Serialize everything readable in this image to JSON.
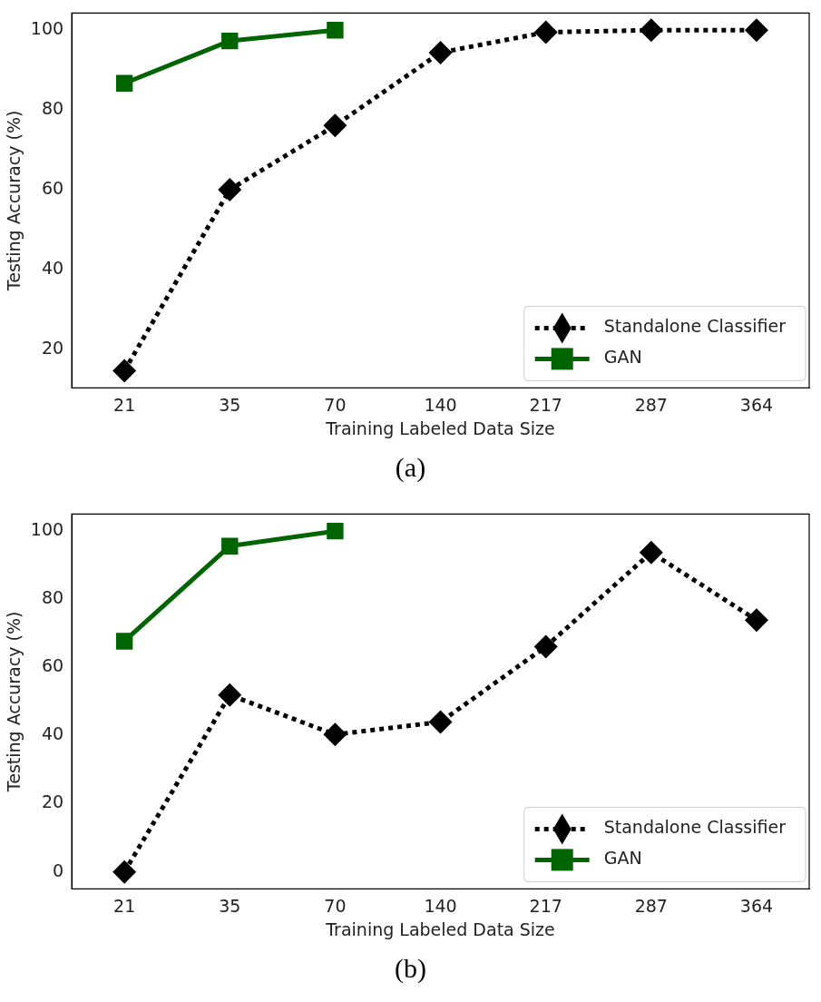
{
  "chart_data": [
    {
      "type": "line",
      "xlabel": "Training Labeled Data Size",
      "ylabel": "Testing Accuracy (%)",
      "categories": [
        "21",
        "35",
        "70",
        "140",
        "217",
        "287",
        "364"
      ],
      "series": [
        {
          "name": "Standalone Classifier",
          "color": "#000000",
          "marker": "diamond",
          "line_style": "dotted",
          "values": [
            14.6,
            60,
            76.1,
            94.4,
            99.5,
            100,
            100
          ]
        },
        {
          "name": "GAN",
          "color": "#006400",
          "marker": "square",
          "line_style": "solid",
          "values": [
            86.7,
            97.3,
            100,
            null,
            null,
            null,
            null
          ]
        }
      ],
      "ylim": [
        10.3,
        104.3
      ],
      "yticks": [
        20,
        40,
        60,
        80,
        100
      ],
      "grid": false,
      "legend": "bottom right",
      "annotations": [
        "(a)"
      ]
    },
    {
      "type": "line",
      "xlabel": "Training Labeled Data Size",
      "ylabel": "Testing Accuracy (%)",
      "categories": [
        "21",
        "35",
        "70",
        "140",
        "217",
        "287",
        "364"
      ],
      "series": [
        {
          "name": "Standalone Classifier",
          "color": "#000000",
          "marker": "diamond",
          "line_style": "dotted",
          "values": [
            0,
            51.9,
            40.3,
            44,
            66.1,
            93.7,
            73.9
          ]
        },
        {
          "name": "GAN",
          "color": "#006400",
          "marker": "square",
          "line_style": "solid",
          "values": [
            67.7,
            95.6,
            100,
            null,
            null,
            null,
            null
          ]
        }
      ],
      "ylim": [
        -5,
        105
      ],
      "yticks": [
        0,
        20,
        40,
        60,
        80,
        100
      ],
      "grid": false,
      "legend": "bottom right",
      "annotations": [
        "(b)"
      ]
    }
  ]
}
